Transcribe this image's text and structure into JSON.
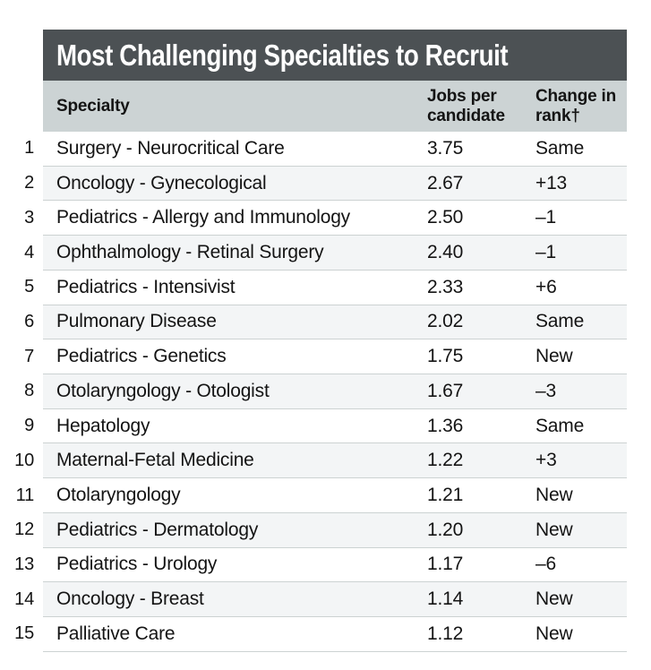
{
  "chart_data": {
    "type": "table",
    "title": "Most Challenging Specialties to Recruit",
    "columns": [
      "Rank",
      "Specialty",
      "Jobs per candidate",
      "Change in rank†"
    ],
    "column_labels": {
      "specialty": "Specialty",
      "jobs_per_candidate": "Jobs per candidate",
      "change_in_rank": "Change in rank†"
    },
    "rows": [
      {
        "rank": "1",
        "specialty": "Surgery - Neurocritical Care",
        "jobs_per_candidate": "3.75",
        "change_in_rank": "Same"
      },
      {
        "rank": "2",
        "specialty": "Oncology - Gynecological",
        "jobs_per_candidate": "2.67",
        "change_in_rank": "+13"
      },
      {
        "rank": "3",
        "specialty": "Pediatrics - Allergy and Immunology",
        "jobs_per_candidate": "2.50",
        "change_in_rank": "–1"
      },
      {
        "rank": "4",
        "specialty": "Ophthalmology - Retinal Surgery",
        "jobs_per_candidate": "2.40",
        "change_in_rank": "–1"
      },
      {
        "rank": "5",
        "specialty": "Pediatrics - Intensivist",
        "jobs_per_candidate": "2.33",
        "change_in_rank": "+6"
      },
      {
        "rank": "6",
        "specialty": "Pulmonary Disease",
        "jobs_per_candidate": "2.02",
        "change_in_rank": "Same"
      },
      {
        "rank": "7",
        "specialty": "Pediatrics - Genetics",
        "jobs_per_candidate": "1.75",
        "change_in_rank": "New"
      },
      {
        "rank": "8",
        "specialty": "Otolaryngology - Otologist",
        "jobs_per_candidate": "1.67",
        "change_in_rank": "–3"
      },
      {
        "rank": "9",
        "specialty": "Hepatology",
        "jobs_per_candidate": "1.36",
        "change_in_rank": "Same"
      },
      {
        "rank": "10",
        "specialty": "Maternal-Fetal Medicine",
        "jobs_per_candidate": "1.22",
        "change_in_rank": "+3"
      },
      {
        "rank": "11",
        "specialty": "Otolaryngology",
        "jobs_per_candidate": "1.21",
        "change_in_rank": "New"
      },
      {
        "rank": "12",
        "specialty": "Pediatrics - Dermatology",
        "jobs_per_candidate": "1.20",
        "change_in_rank": "New"
      },
      {
        "rank": "13",
        "specialty": "Pediatrics - Urology",
        "jobs_per_candidate": "1.17",
        "change_in_rank": "–6"
      },
      {
        "rank": "14",
        "specialty": "Oncology - Breast",
        "jobs_per_candidate": "1.14",
        "change_in_rank": "New"
      },
      {
        "rank": "15",
        "specialty": "Palliative Care",
        "jobs_per_candidate": "1.12",
        "change_in_rank": "New"
      }
    ],
    "layout": {
      "legend": "none",
      "grid": "horizontal-row-separators",
      "striped_rows": true,
      "title_position": "top-bar"
    }
  },
  "colors": {
    "title_bar_bg": "#4c5154",
    "title_text": "#ffffff",
    "header_bg": "#ccd3d4",
    "row_bg": "#ffffff",
    "row_alt_bg": "#f3f5f6",
    "separator": "#ccd2d2",
    "body_text": "#141414"
  }
}
